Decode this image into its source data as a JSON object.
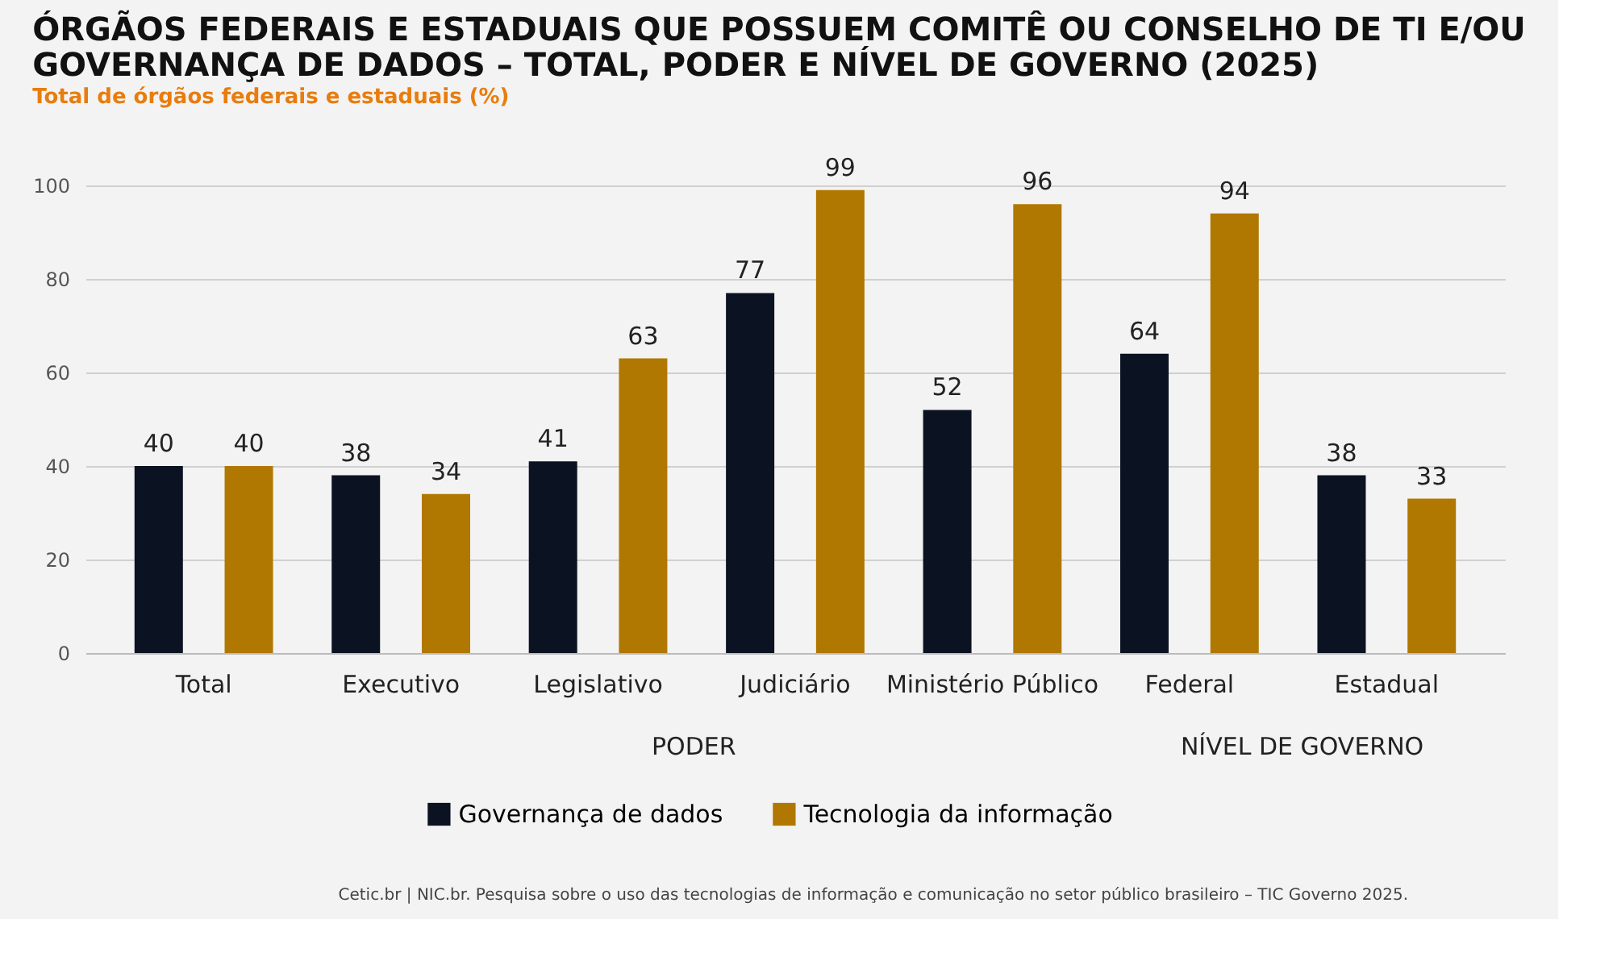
{
  "chart_data": {
    "type": "bar",
    "title": "ÓRGÃOS FEDERAIS E ESTADUAIS QUE POSSUEM COMITÊ OU CONSELHO DE TI E/OU GOVERNANÇA DE DADOS – TOTAL, PODER E NÍVEL DE GOVERNO (2025)",
    "subtitle": "Total de órgãos federais e estaduais (%)",
    "categories": [
      "Total",
      "Executivo",
      "Legislativo",
      "Judiciário",
      "Ministério Público",
      "Federal",
      "Estadual"
    ],
    "series": [
      {
        "name": "Governança de dados",
        "color": "#0b1221",
        "values": [
          40,
          38,
          41,
          77,
          52,
          64,
          38
        ]
      },
      {
        "name": "Tecnologia da informação",
        "color": "#b07800",
        "values": [
          40,
          34,
          63,
          99,
          96,
          94,
          33
        ]
      }
    ],
    "ylim": [
      0,
      100
    ],
    "yticks": [
      0,
      20,
      40,
      60,
      80,
      100
    ],
    "grid": "y",
    "legend": "bottom",
    "data_labels": true,
    "annotations": [
      "PODER",
      "NÍVEL DE GOVERNO",
      "Cetic.br | NIC.br. Pesquisa sobre o uso das tecnologias de informação e comunicação no setor público brasileiro – TIC Governo 2025."
    ]
  }
}
